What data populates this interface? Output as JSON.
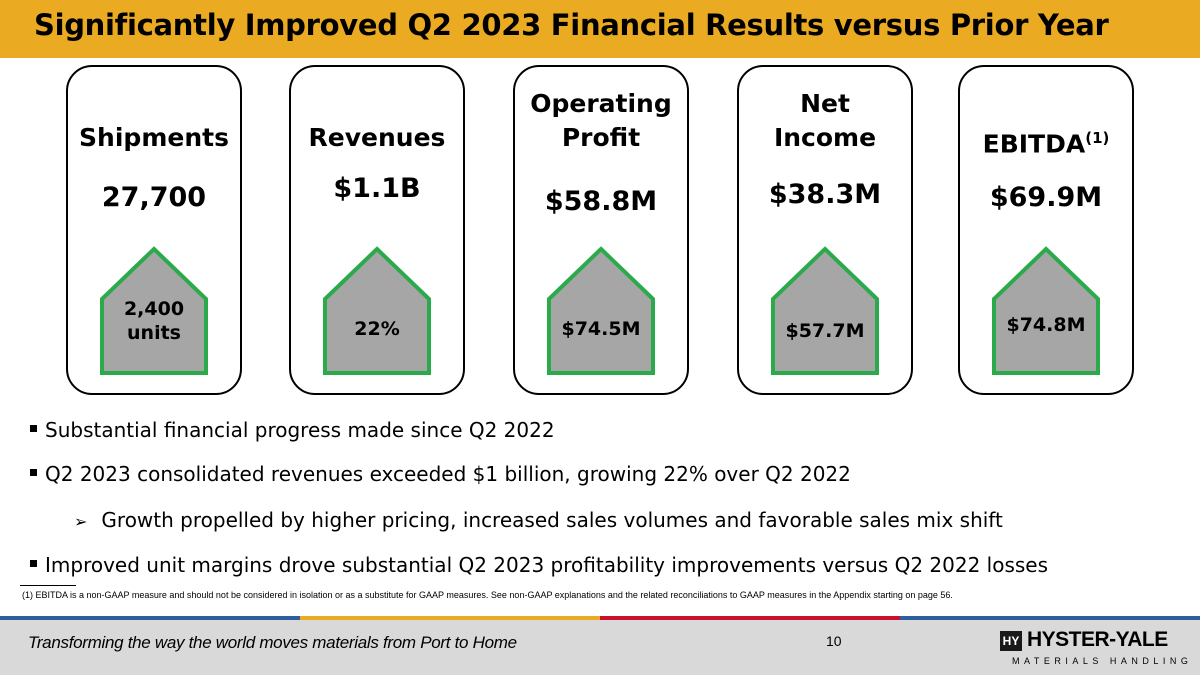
{
  "title": "Significantly Improved Q2 2023 Financial Results versus Prior Year",
  "colors": {
    "title_bar": "#EAAA21",
    "house_fill": "#A6A6A6",
    "house_border": "#2BAA4B"
  },
  "metrics": [
    {
      "name_lines": [
        "",
        "Shipments"
      ],
      "value": "27,700",
      "change_lines": [
        "2,400",
        "units"
      ]
    },
    {
      "name_lines": [
        "",
        "Revenues"
      ],
      "value": "$1.1B",
      "change_lines": [
        "",
        "22%"
      ]
    },
    {
      "name_lines": [
        "Operating",
        "Profit"
      ],
      "value": "$58.8M",
      "change_lines": [
        "",
        "$74.5M"
      ]
    },
    {
      "name_lines": [
        "Net",
        "Income"
      ],
      "value": "$38.3M",
      "change_lines": [
        "",
        "$57.7M"
      ]
    },
    {
      "name_lines": [
        "",
        "EBITDA"
      ],
      "name_sup": "(1)",
      "value": "$69.9M",
      "change_lines": [
        "",
        "$74.8M"
      ]
    }
  ],
  "bullets": [
    "Substantial financial progress made since Q2 2022",
    "Q2 2023 consolidated revenues exceeded $1 billion, growing 22% over Q2 2022",
    "Growth propelled by higher pricing, increased sales volumes and favorable sales mix shift",
    "Improved unit margins drove substantial Q2 2023 profitability improvements versus Q2 2022 losses"
  ],
  "footnote": "(1) EBITDA is a non-GAAP measure and should not be considered in isolation or as a substitute for GAAP measures. See non-GAAP explanations and the related reconciliations to GAAP measures in the Appendix starting on page 56.",
  "footer": {
    "tagline": "Transforming the way the world moves materials from Port to Home",
    "page_number": "10",
    "logo_icon": "HY",
    "logo_text": "HYSTER-YALE",
    "logo_sub": "MATERIALS HANDLING"
  }
}
